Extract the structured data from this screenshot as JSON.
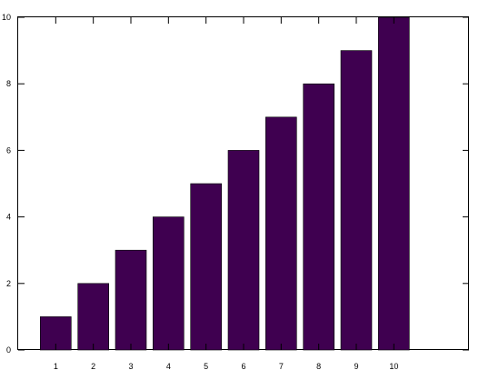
{
  "chart_data": {
    "type": "bar",
    "title": "",
    "xlabel": "",
    "ylabel": "",
    "categories": [
      "1",
      "2",
      "3",
      "4",
      "5",
      "6",
      "7",
      "8",
      "9",
      "10"
    ],
    "values": [
      1,
      2,
      3,
      4,
      5,
      6,
      7,
      8,
      9,
      10
    ],
    "xlim": [
      0,
      12
    ],
    "ylim": [
      0,
      10
    ],
    "yticks": [
      "0",
      "2",
      "4",
      "6",
      "8",
      "10"
    ],
    "ytick_values": [
      0,
      2,
      4,
      6,
      8,
      10
    ],
    "bar_color": "#3f0050",
    "grid": false,
    "legend": "none"
  }
}
